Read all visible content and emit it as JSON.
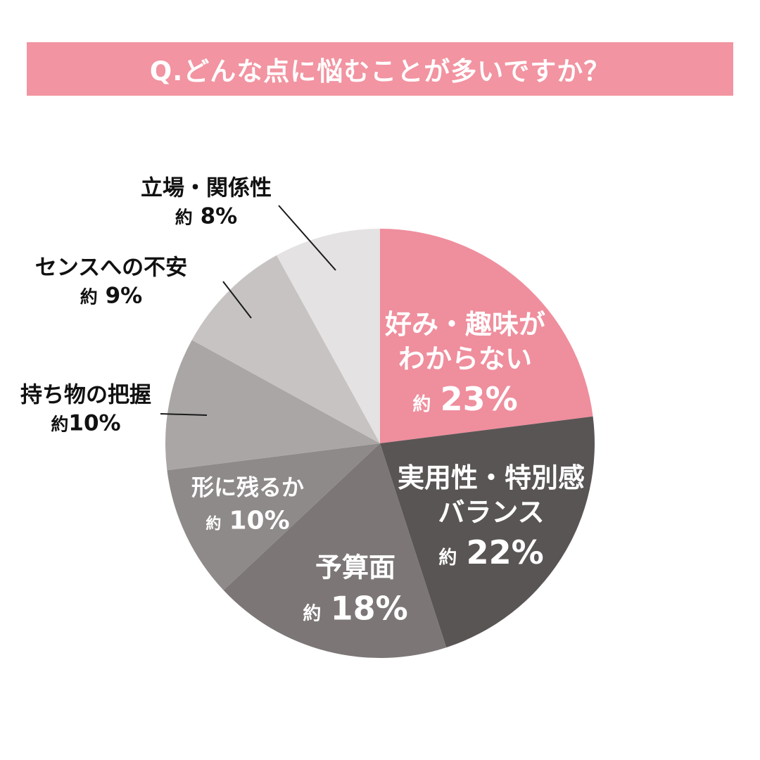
{
  "page": {
    "background": "#ffffff"
  },
  "header": {
    "title": "Q.どんな点に悩むことが多いですか？",
    "background": "#f294a1",
    "text_color": "#ffffff"
  },
  "chart_data": {
    "type": "pie",
    "title": "Q.どんな点に悩むことが多いですか？",
    "direction": "clockwise",
    "start_angle_deg": 0,
    "total": 100,
    "legend": "none",
    "slices": [
      {
        "name": "好み・趣味がわからない",
        "label_lines": [
          "好み・趣味が",
          "わからない"
        ],
        "value": 23,
        "value_prefix": "約",
        "value_text": "23%",
        "color": "#ef8e9d",
        "label_placement": "inside"
      },
      {
        "name": "実用性・特別感バランス",
        "label_lines": [
          "実用性・特別感",
          "バランス"
        ],
        "value": 22,
        "value_prefix": "約",
        "value_text": "22%",
        "color": "#5a5555",
        "label_placement": "inside"
      },
      {
        "name": "予算面",
        "label_lines": [
          "予算面"
        ],
        "value": 18,
        "value_prefix": "約",
        "value_text": "18%",
        "color": "#7c7676",
        "label_placement": "inside"
      },
      {
        "name": "形に残るか",
        "label_lines": [
          "形に残るか"
        ],
        "value": 10,
        "value_prefix": "約",
        "value_text": "10%",
        "color": "#8f8a8a",
        "label_placement": "inside"
      },
      {
        "name": "持ち物の把握",
        "label_lines": [
          "持ち物の把握"
        ],
        "value": 10,
        "value_prefix": "約",
        "value_text": "10%",
        "color": "#aaa6a6",
        "label_placement": "outside"
      },
      {
        "name": "センスへの不安",
        "label_lines": [
          "センスへの不安"
        ],
        "value": 9,
        "value_prefix": "約",
        "value_text": "9%",
        "color": "#c7c3c3",
        "label_placement": "outside"
      },
      {
        "name": "立場・関係性",
        "label_lines": [
          "立場・関係性"
        ],
        "value": 8,
        "value_prefix": "約",
        "value_text": "8%",
        "color": "#e4e2e2",
        "label_placement": "outside"
      }
    ]
  }
}
